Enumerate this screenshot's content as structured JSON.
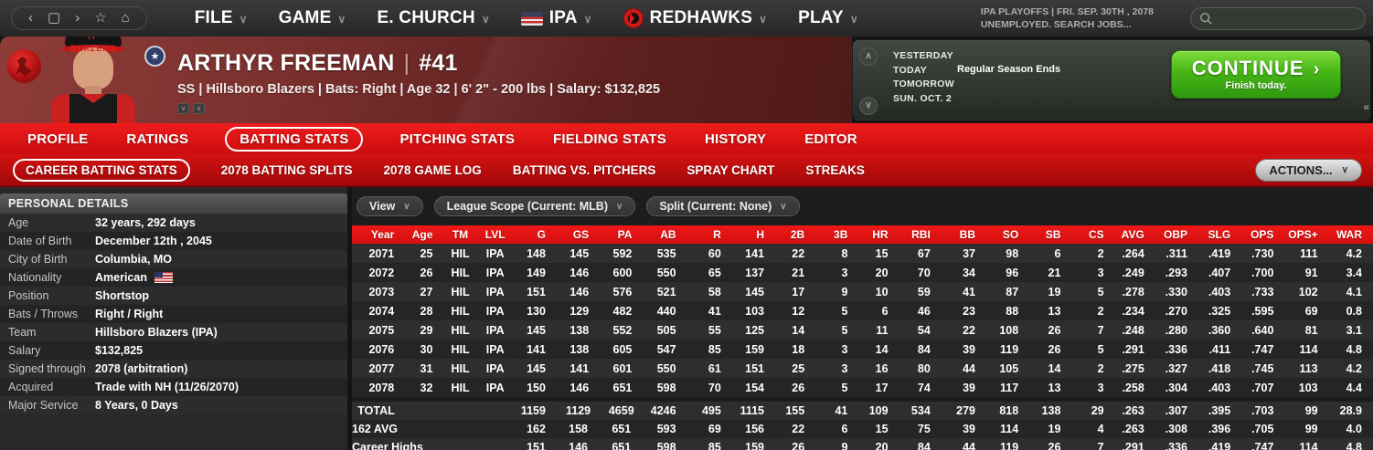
{
  "top_bar": {
    "nav_icons": [
      {
        "name": "back-icon",
        "glyph": "‹"
      },
      {
        "name": "page-icon",
        "glyph": "▢"
      },
      {
        "name": "forward-icon",
        "glyph": "›"
      },
      {
        "name": "bookmark-icon",
        "glyph": "☆"
      },
      {
        "name": "home-icon",
        "glyph": "⌂"
      }
    ],
    "menus": [
      {
        "label": "FILE"
      },
      {
        "label": "GAME"
      },
      {
        "label": "E. CHURCH"
      },
      {
        "label": "IPA",
        "icon": "ipa-flag"
      },
      {
        "label": "REDHAWKS",
        "icon": "redhawks"
      },
      {
        "label": "PLAY"
      }
    ],
    "status_line1": "IPA PLAYOFFS  |  FRI. SEP. 30TH , 2078",
    "status_line2": "UNEMPLOYED. SEARCH JOBS...",
    "search_placeholder": ""
  },
  "player_header": {
    "name": "ARTHYR FREEMAN",
    "divider": "|",
    "number": "#41",
    "details": "SS | Hillsboro Blazers  |  Bats: Right  |  Age 32  |  6' 2\" - 200 lbs  |  Salary: $132,825",
    "jersey_text": "BLAZERS",
    "cap_letter": "H"
  },
  "date_panel": {
    "yesterday_label": "YESTERDAY",
    "today_label": "TODAY",
    "today_event": "Regular Season Ends",
    "tomorrow_label": "TOMORROW",
    "next_date": "SUN. OCT. 2",
    "continue_label": "CONTINUE",
    "continue_arrow": "›",
    "continue_sub": "Finish today."
  },
  "tabs": {
    "items": [
      "PROFILE",
      "RATINGS",
      "BATTING STATS",
      "PITCHING STATS",
      "FIELDING STATS",
      "HISTORY",
      "EDITOR"
    ],
    "active_index": 2
  },
  "subtabs": {
    "items": [
      "CAREER BATTING STATS",
      "2078 BATTING SPLITS",
      "2078 GAME LOG",
      "BATTING VS. PITCHERS",
      "SPRAY CHART",
      "STREAKS"
    ],
    "active_index": 0,
    "actions_label": "ACTIONS..."
  },
  "personal_details": {
    "title": "PERSONAL DETAILS",
    "rows": [
      {
        "label": "Age",
        "value": "32 years, 292 days"
      },
      {
        "label": "Date of Birth",
        "value": "December 12th , 2045"
      },
      {
        "label": "City of Birth",
        "value": "Columbia, MO"
      },
      {
        "label": "Nationality",
        "value": "American",
        "flag": true
      },
      {
        "label": "Position",
        "value": "Shortstop"
      },
      {
        "label": "Bats / Throws",
        "value": "Right / Right"
      },
      {
        "label": "Team",
        "value": "Hillsboro Blazers (IPA)"
      },
      {
        "label": "Salary",
        "value": "$132,825"
      },
      {
        "label": "Signed through",
        "value": "2078 (arbitration)"
      },
      {
        "label": "Acquired",
        "value": "Trade with NH (11/26/2070)"
      },
      {
        "label": "Major Service",
        "value": "8 Years, 0 Days"
      }
    ]
  },
  "filters": {
    "view_label": "View",
    "league_label": "League Scope (Current: MLB)",
    "split_label": "Split  (Current: None)"
  },
  "stats_table": {
    "columns": [
      "Year",
      "Age",
      "TM",
      "LVL",
      "G",
      "GS",
      "PA",
      "AB",
      "R",
      "H",
      "2B",
      "3B",
      "HR",
      "RBI",
      "BB",
      "SO",
      "SB",
      "CS",
      "AVG",
      "OBP",
      "SLG",
      "OPS",
      "OPS+",
      "WAR"
    ],
    "rows": [
      [
        "2071",
        "25",
        "HIL",
        "IPA",
        "148",
        "145",
        "592",
        "535",
        "60",
        "141",
        "22",
        "8",
        "15",
        "67",
        "37",
        "98",
        "6",
        "2",
        ".264",
        ".311",
        ".419",
        ".730",
        "111",
        "4.2"
      ],
      [
        "2072",
        "26",
        "HIL",
        "IPA",
        "149",
        "146",
        "600",
        "550",
        "65",
        "137",
        "21",
        "3",
        "20",
        "70",
        "34",
        "96",
        "21",
        "3",
        ".249",
        ".293",
        ".407",
        ".700",
        "91",
        "3.4"
      ],
      [
        "2073",
        "27",
        "HIL",
        "IPA",
        "151",
        "146",
        "576",
        "521",
        "58",
        "145",
        "17",
        "9",
        "10",
        "59",
        "41",
        "87",
        "19",
        "5",
        ".278",
        ".330",
        ".403",
        ".733",
        "102",
        "4.1"
      ],
      [
        "2074",
        "28",
        "HIL",
        "IPA",
        "130",
        "129",
        "482",
        "440",
        "41",
        "103",
        "12",
        "5",
        "6",
        "46",
        "23",
        "88",
        "13",
        "2",
        ".234",
        ".270",
        ".325",
        ".595",
        "69",
        "0.8"
      ],
      [
        "2075",
        "29",
        "HIL",
        "IPA",
        "145",
        "138",
        "552",
        "505",
        "55",
        "125",
        "14",
        "5",
        "11",
        "54",
        "22",
        "108",
        "26",
        "7",
        ".248",
        ".280",
        ".360",
        ".640",
        "81",
        "3.1"
      ],
      [
        "2076",
        "30",
        "HIL",
        "IPA",
        "141",
        "138",
        "605",
        "547",
        "85",
        "159",
        "18",
        "3",
        "14",
        "84",
        "39",
        "119",
        "26",
        "5",
        ".291",
        ".336",
        ".411",
        ".747",
        "114",
        "4.8"
      ],
      [
        "2077",
        "31",
        "HIL",
        "IPA",
        "145",
        "141",
        "601",
        "550",
        "61",
        "151",
        "25",
        "3",
        "16",
        "80",
        "44",
        "105",
        "14",
        "2",
        ".275",
        ".327",
        ".418",
        ".745",
        "113",
        "4.2"
      ],
      [
        "2078",
        "32",
        "HIL",
        "IPA",
        "150",
        "146",
        "651",
        "598",
        "70",
        "154",
        "26",
        "5",
        "17",
        "74",
        "39",
        "117",
        "13",
        "3",
        ".258",
        ".304",
        ".403",
        ".707",
        "103",
        "4.4"
      ]
    ],
    "summary_rows": [
      {
        "label": "TOTAL",
        "values": [
          "1159",
          "1129",
          "4659",
          "4246",
          "495",
          "1115",
          "155",
          "41",
          "109",
          "534",
          "279",
          "818",
          "138",
          "29",
          ".263",
          ".307",
          ".395",
          ".703",
          "99",
          "28.9"
        ]
      },
      {
        "label": "162 AVG",
        "values": [
          "162",
          "158",
          "651",
          "593",
          "69",
          "156",
          "22",
          "6",
          "15",
          "75",
          "39",
          "114",
          "19",
          "4",
          ".263",
          ".308",
          ".396",
          ".705",
          "99",
          "4.0"
        ]
      },
      {
        "label": "Career Highs",
        "values": [
          "151",
          "146",
          "651",
          "598",
          "85",
          "159",
          "26",
          "9",
          "20",
          "84",
          "44",
          "119",
          "26",
          "7",
          ".291",
          ".336",
          ".419",
          ".747",
          "114",
          "4.8"
        ]
      }
    ]
  }
}
